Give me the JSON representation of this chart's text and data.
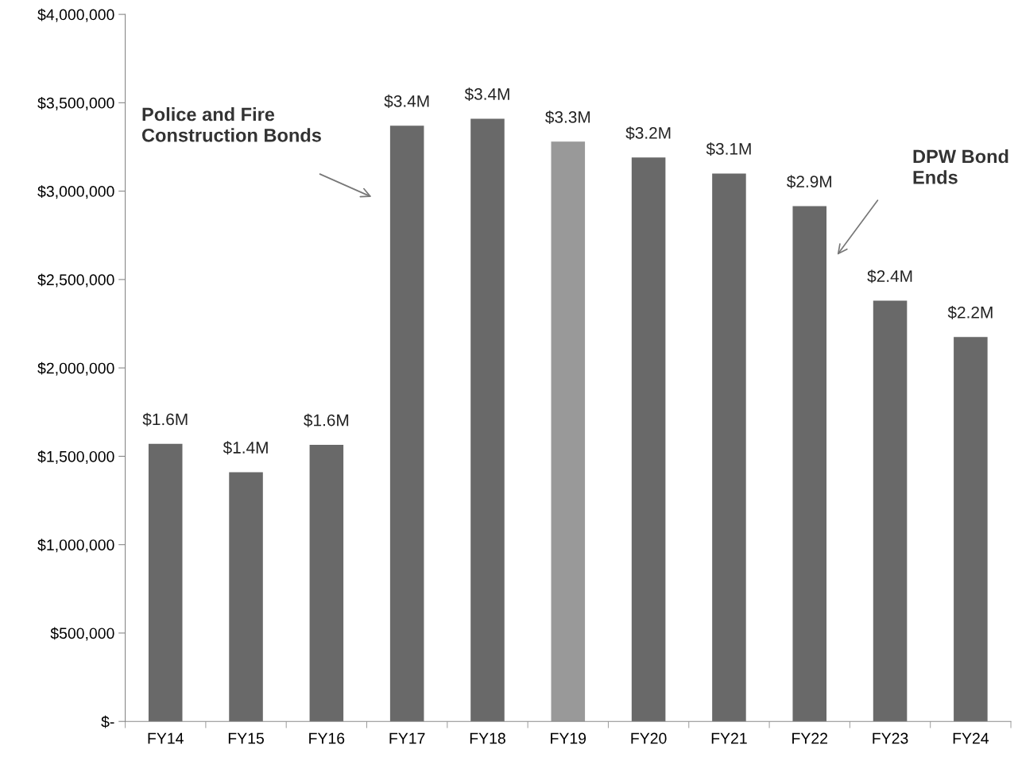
{
  "chart_data": {
    "type": "bar",
    "categories": [
      "FY14",
      "FY15",
      "FY16",
      "FY17",
      "FY18",
      "FY19",
      "FY20",
      "FY21",
      "FY22",
      "FY23",
      "FY24"
    ],
    "values": [
      1570000,
      1410000,
      1565000,
      3370000,
      3410000,
      3280000,
      3190000,
      3100000,
      2915000,
      2380000,
      2175000
    ],
    "colors": [
      "#696969",
      "#696969",
      "#696969",
      "#696969",
      "#696969",
      "#999999",
      "#696969",
      "#696969",
      "#696969",
      "#696969",
      "#696969"
    ],
    "value_labels": [
      "$1.6M",
      "$1.4M",
      "$1.6M",
      "$3.4M",
      "$3.4M",
      "$3.3M",
      "$3.2M",
      "$3.1M",
      "$2.9M",
      "$2.4M",
      "$2.2M"
    ],
    "ylim": [
      0,
      4000000
    ],
    "yticks": [
      {
        "value": 0,
        "label": "$-"
      },
      {
        "value": 500000,
        "label": "$500,000"
      },
      {
        "value": 1000000,
        "label": "$1,000,000"
      },
      {
        "value": 1500000,
        "label": "$1,500,000"
      },
      {
        "value": 2000000,
        "label": "$2,000,000"
      },
      {
        "value": 2500000,
        "label": "$2,500,000"
      },
      {
        "value": 3000000,
        "label": "$3,000,000"
      },
      {
        "value": 3500000,
        "label": "$3,500,000"
      },
      {
        "value": 4000000,
        "label": "$4,000,000"
      }
    ],
    "annotations": [
      "Police and Fire\nConstruction Bonds",
      "DPW Bond\nEnds"
    ],
    "grid": false,
    "legend": false
  }
}
